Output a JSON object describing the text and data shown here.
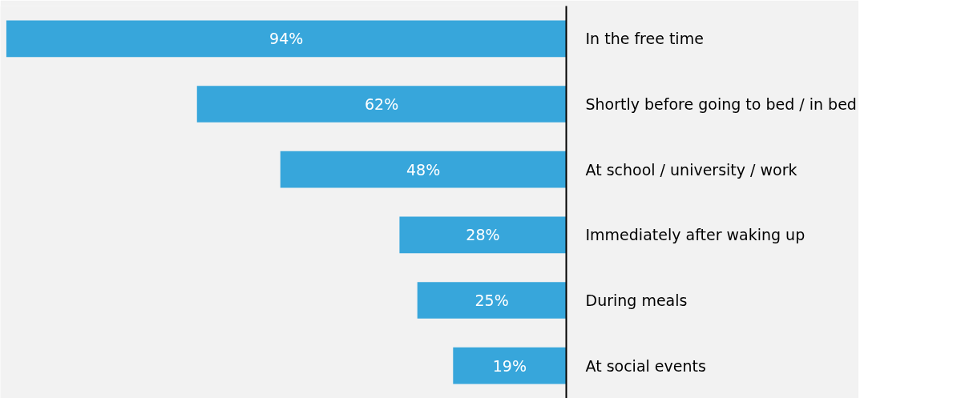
{
  "chart_data": {
    "type": "bar",
    "orientation": "horizontal",
    "categories": [
      "In the free time",
      "Shortly before going to bed / in bed",
      "At school / university / work",
      "Immediately after waking up",
      "During meals",
      "At social events"
    ],
    "values": [
      94,
      62,
      48,
      28,
      25,
      19
    ],
    "color": "#37a6db",
    "xlim": [
      95,
      0
    ],
    "data_labels": true,
    "value_labels": [
      "94%",
      "62%",
      "48%",
      "28%",
      "25%",
      "19%"
    ],
    "tick_labels": "y",
    "grid": false
  }
}
